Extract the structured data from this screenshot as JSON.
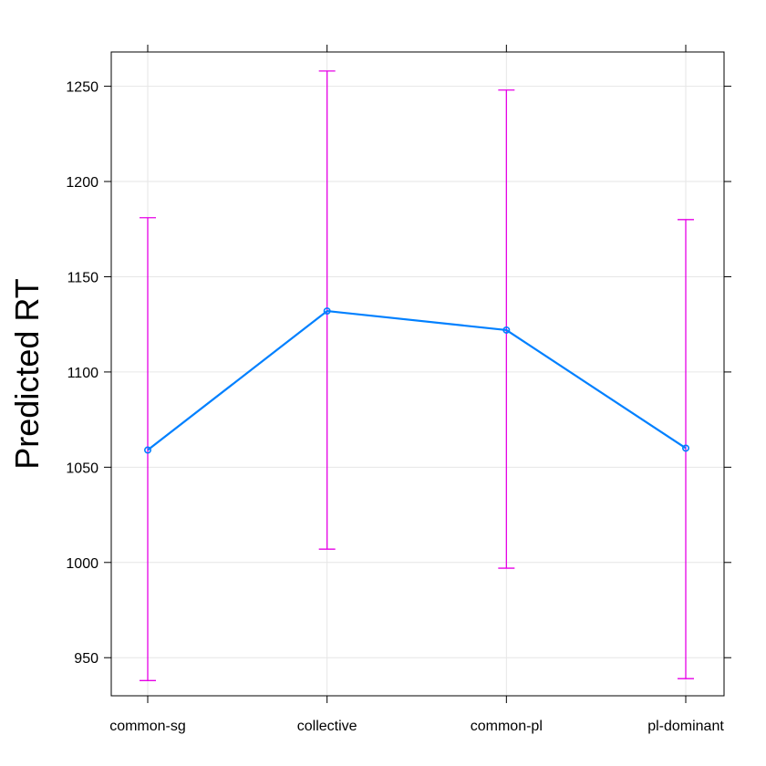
{
  "chart_data": {
    "type": "line",
    "title": "",
    "xlabel": "",
    "ylabel": "Predicted RT",
    "categories": [
      "common-sg",
      "collective",
      "common-pl",
      "pl-dominant"
    ],
    "series": [
      {
        "values": [
          1059,
          1132,
          1122,
          1060
        ],
        "lower": [
          938,
          1007,
          997,
          939
        ],
        "upper": [
          1181,
          1258,
          1248,
          1180
        ]
      }
    ],
    "ylim": [
      930,
      1268
    ],
    "yticks": [
      950,
      1000,
      1050,
      1100,
      1150,
      1200,
      1250
    ],
    "grid": true,
    "legend": "none",
    "colors": {
      "line": "#0080ff",
      "error_bar": "#e600e6",
      "grid": "#e6e6e6",
      "frame": "#000000"
    }
  }
}
